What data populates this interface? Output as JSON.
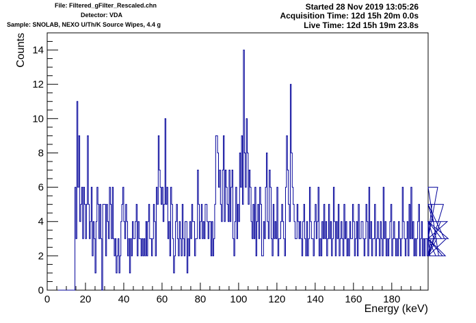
{
  "header": {
    "file": "File: Filtered_gFilter_Rescaled.chn",
    "detector": "Detector: VDA",
    "sample": "Sample: SNOLAB, NEXO U/Th/K Source Wipes, 4.4 g",
    "started": "Started 28 Nov 2019 13:05:26",
    "acquisition": "Acquisition Time: 12d 15h 20m 0.0s",
    "live": "Live Time: 12d 15h 19m 23.8s"
  },
  "colors": {
    "histogram": "#000099",
    "axis": "#000000"
  },
  "chart_data": {
    "type": "line",
    "style": "step-histogram",
    "xlabel": "Energy (keV)",
    "ylabel": "Counts",
    "xlim": [
      0,
      199
    ],
    "ylim": [
      0,
      15
    ],
    "x_ticks": [
      0,
      20,
      40,
      60,
      80,
      100,
      120,
      140,
      160,
      180
    ],
    "y_ticks": [
      0,
      2,
      4,
      6,
      8,
      10,
      12,
      14
    ],
    "grid": false,
    "legend": "none",
    "series": [
      {
        "x_start": 0,
        "bin_width": 0.5,
        "values": [
          0,
          0,
          0,
          0,
          0,
          0,
          0,
          0,
          0,
          0,
          0,
          0,
          0,
          0,
          0,
          0,
          0,
          0,
          0,
          0,
          0,
          0,
          0,
          0,
          0,
          0,
          0,
          0,
          0,
          6,
          3,
          11,
          6,
          9,
          4,
          5,
          6,
          3,
          6,
          5,
          3,
          5,
          9,
          5,
          3,
          4,
          6,
          2,
          4,
          3,
          1,
          4,
          6,
          5,
          3,
          5,
          3,
          0,
          5,
          5,
          5,
          2,
          5,
          4,
          3,
          6,
          5,
          3,
          6,
          3,
          2,
          3,
          1,
          2,
          3,
          1,
          2,
          4,
          5,
          6,
          4,
          3,
          5,
          4,
          2,
          3,
          1,
          3,
          2,
          4,
          3,
          3,
          4,
          5,
          2,
          4,
          3,
          3,
          2,
          3,
          2,
          3,
          2,
          4,
          2,
          4,
          5,
          3,
          3,
          2,
          3,
          5,
          4,
          2,
          6,
          5,
          9,
          7,
          6,
          5,
          6,
          4,
          5,
          10,
          5,
          6,
          3,
          4,
          2,
          6,
          5,
          3,
          1,
          2,
          4,
          5,
          3,
          2,
          4,
          3,
          2,
          5,
          3,
          2,
          4,
          4,
          1,
          3,
          2,
          4,
          3,
          5,
          4,
          4,
          2,
          3,
          3,
          7,
          5,
          3,
          4,
          5,
          3,
          4,
          3,
          5,
          5,
          4,
          3,
          4,
          4,
          2,
          4,
          2,
          3,
          5,
          9,
          9,
          8,
          6,
          7,
          5,
          4,
          7,
          9,
          4,
          7,
          6,
          5,
          4,
          7,
          4,
          6,
          7,
          3,
          2,
          4,
          6,
          3,
          5,
          4,
          8,
          6,
          9,
          5,
          14,
          8,
          6,
          10,
          8,
          5,
          7,
          6,
          4,
          3,
          5,
          3,
          6,
          2,
          4,
          5,
          3,
          6,
          5,
          2,
          2,
          4,
          3,
          6,
          8,
          4,
          3,
          7,
          6,
          3,
          2,
          5,
          3,
          4,
          3,
          6,
          2,
          3,
          3,
          4,
          5,
          4,
          3,
          2,
          6,
          9,
          7,
          5,
          4,
          12,
          8,
          6,
          5,
          4,
          3,
          3,
          5,
          4,
          3,
          4,
          3,
          2,
          4,
          5,
          3,
          2,
          4,
          2,
          3,
          6,
          4,
          3,
          3,
          2,
          4,
          5,
          3,
          4,
          6,
          2,
          3,
          2,
          4,
          3,
          5,
          3,
          4,
          2,
          3,
          5,
          3,
          4,
          2,
          3,
          6,
          4,
          2,
          4,
          3,
          5,
          2,
          3,
          4,
          3,
          2,
          5,
          3,
          4,
          2,
          3,
          2,
          4,
          3,
          3,
          5,
          4,
          2,
          3,
          4,
          2,
          5,
          3,
          3,
          4,
          4,
          3,
          2,
          3,
          5,
          4,
          2,
          6,
          3,
          4,
          2,
          3,
          3,
          5,
          2,
          3,
          4,
          3,
          2,
          4,
          3,
          2,
          6,
          3,
          4,
          2,
          3,
          2,
          3,
          4,
          5,
          2,
          3,
          4,
          3,
          2,
          3,
          2,
          4,
          3,
          2,
          3,
          6,
          4,
          3,
          2,
          3,
          4,
          2,
          5,
          3,
          6,
          3,
          4,
          2,
          3,
          2,
          3,
          4,
          5,
          2,
          3,
          4,
          2,
          3,
          2,
          3,
          3,
          2,
          4,
          3,
          2,
          3,
          5,
          4,
          3,
          3,
          2,
          3,
          6,
          2,
          2,
          4,
          3,
          2,
          5,
          3,
          2,
          3,
          4,
          3
        ]
      }
    ]
  }
}
